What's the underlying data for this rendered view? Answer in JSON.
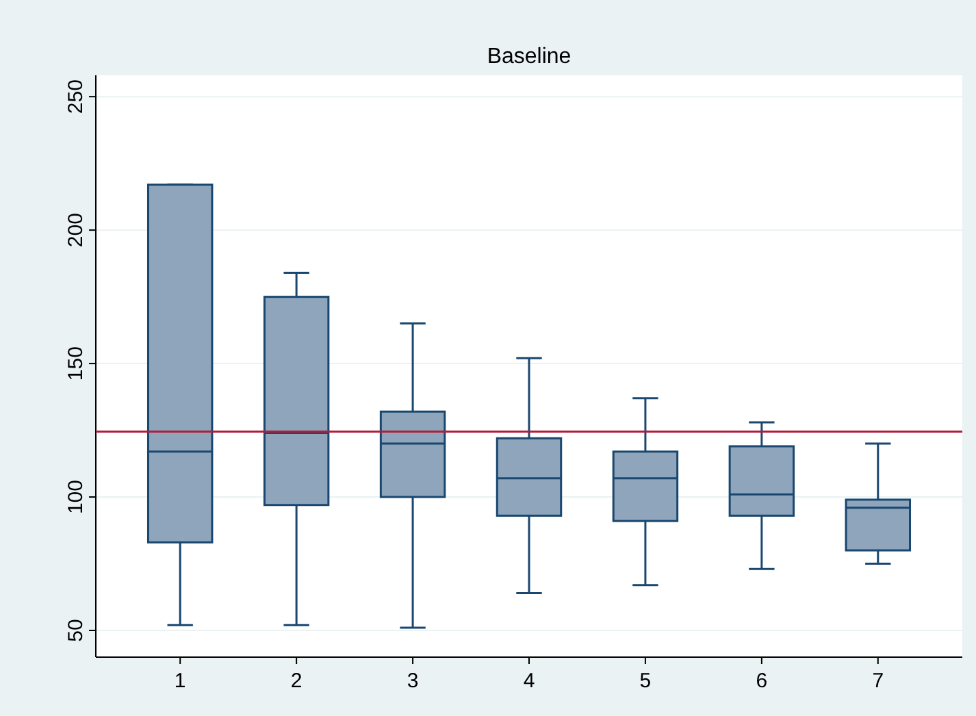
{
  "chart_data": {
    "type": "box",
    "title": "Baseline",
    "categories": [
      "1",
      "2",
      "3",
      "4",
      "5",
      "6",
      "7"
    ],
    "boxes": [
      {
        "low": 52,
        "q1": 83,
        "median": 117,
        "q3": 217,
        "high": 217
      },
      {
        "low": 52,
        "q1": 97,
        "median": 124,
        "q3": 175,
        "high": 184
      },
      {
        "low": 51,
        "q1": 100,
        "median": 120,
        "q3": 132,
        "high": 165
      },
      {
        "low": 64,
        "q1": 93,
        "median": 107,
        "q3": 122,
        "high": 152
      },
      {
        "low": 67,
        "q1": 91,
        "median": 107,
        "q3": 117,
        "high": 137
      },
      {
        "low": 73,
        "q1": 93,
        "median": 101,
        "q3": 119,
        "high": 128
      },
      {
        "low": 75,
        "q1": 80,
        "median": 96,
        "q3": 99,
        "high": 120
      }
    ],
    "color": "#8ea5bb",
    "ylim": [
      40,
      258
    ],
    "yticks": [
      50,
      100,
      150,
      200,
      250
    ],
    "grid": "y",
    "ref_lines": [
      {
        "axis": "y",
        "value": 124.5,
        "color": "#b01c3c"
      }
    ]
  }
}
